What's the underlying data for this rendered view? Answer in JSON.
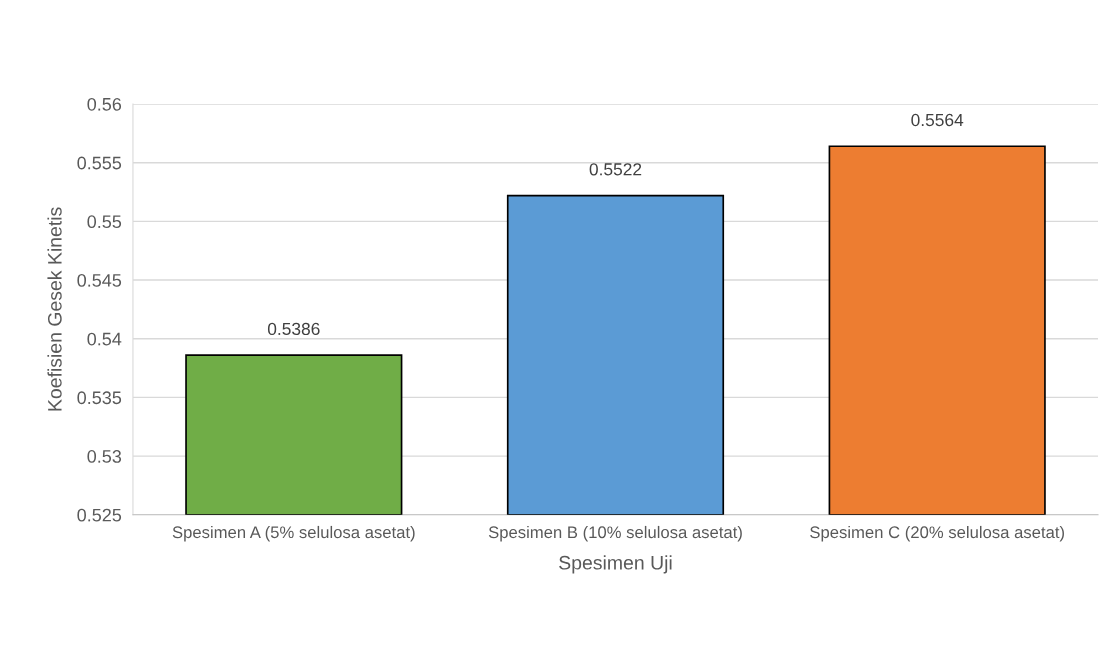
{
  "chart_data": {
    "type": "bar",
    "categories": [
      "Spesimen A (5% selulosa asetat)",
      "Spesimen B (10% selulosa asetat)",
      "Spesimen C (20% selulosa asetat)"
    ],
    "values": [
      0.5386,
      0.5522,
      0.5564
    ],
    "colors": [
      "#70ad47",
      "#5b9bd5",
      "#ed7d31"
    ],
    "xlabel": "Spesimen Uji",
    "ylabel": "Koefisien Gesek Kinetis",
    "ylim": [
      0.525,
      0.56
    ],
    "yticks": [
      0.525,
      0.53,
      0.535,
      0.54,
      0.545,
      0.55,
      0.555,
      0.56
    ],
    "grid": "y",
    "data_labels": true
  }
}
